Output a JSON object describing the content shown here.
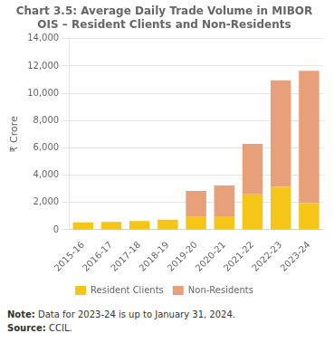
{
  "chart_data": {
    "type": "bar",
    "title": "Chart 3.5: Average Daily Trade Volume in MIBOR\nOIS – Resident Clients and Non-Residents",
    "categories": [
      "2015-16",
      "2016-17",
      "2017-18",
      "2018-19",
      "2019-20",
      "2020-21",
      "2021-22",
      "2022-23",
      "2023-24"
    ],
    "series": [
      {
        "name": "Resident Clients",
        "color": "#f5c518",
        "values": [
          550,
          580,
          650,
          750,
          950,
          1000,
          2600,
          3150,
          1950
        ]
      },
      {
        "name": "Non-Residents",
        "color": "#e8a07a",
        "values": [
          0,
          0,
          0,
          0,
          1900,
          2250,
          3700,
          7800,
          9700
        ]
      }
    ],
    "stacked": true,
    "ylabel": "₹ Crore",
    "ylim": [
      0,
      14000
    ],
    "yticks": [
      0,
      {
        "value": 2000,
        "label": "2,000"
      },
      {
        "value": 4000,
        "label": "4,000"
      },
      {
        "value": 6000,
        "label": "6,000"
      },
      {
        "value": 8000,
        "label": "8,000"
      },
      {
        "value": 10000,
        "label": "10,000"
      },
      {
        "value": 12000,
        "label": "12,000"
      },
      {
        "value": 14000,
        "label": "14,000"
      }
    ],
    "grid": true,
    "legend": "bottom",
    "annotations": [
      "Note: Data for 2023-24 is up to January 31, 2024.",
      "Source: CCIL."
    ]
  }
}
